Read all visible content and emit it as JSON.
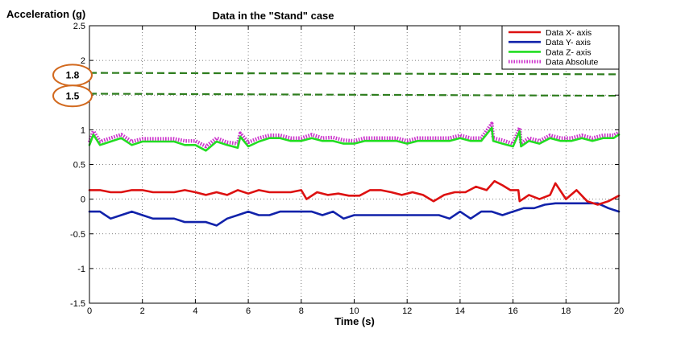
{
  "chart_data": {
    "type": "line",
    "title": "Data in the \"Stand\" case",
    "xlabel": "Time (s)",
    "ylabel": "Acceleration (g)",
    "xlim": [
      0,
      20
    ],
    "ylim": [
      -1.5,
      2.5
    ],
    "xticks": [
      "0",
      "2",
      "4",
      "6",
      "8",
      "10",
      "12",
      "14",
      "16",
      "18",
      "20"
    ],
    "yticks": [
      "-1.5",
      "-1",
      "-0.5",
      "0",
      "0.5",
      "1",
      "1.5",
      "2",
      "2.5"
    ],
    "grid": true,
    "legend_position": "top-right",
    "series": [
      {
        "name": "Data X- axis",
        "color": "#dd1111",
        "style": "solid",
        "x": [
          0,
          0.4,
          0.8,
          1.2,
          1.6,
          2.0,
          2.4,
          2.8,
          3.2,
          3.6,
          4.0,
          4.4,
          4.8,
          5.2,
          5.6,
          6.0,
          6.4,
          6.8,
          7.2,
          7.6,
          8.0,
          8.2,
          8.6,
          9.0,
          9.4,
          9.8,
          10.2,
          10.6,
          11.0,
          11.4,
          11.8,
          12.2,
          12.6,
          13.0,
          13.4,
          13.8,
          14.2,
          14.6,
          15.0,
          15.3,
          15.6,
          15.9,
          16.2,
          16.25,
          16.6,
          17.0,
          17.4,
          17.6,
          18.0,
          18.4,
          18.8,
          19.2,
          19.6,
          20.0
        ],
        "y": [
          0.13,
          0.13,
          0.1,
          0.1,
          0.13,
          0.13,
          0.1,
          0.1,
          0.1,
          0.13,
          0.1,
          0.06,
          0.1,
          0.06,
          0.13,
          0.08,
          0.13,
          0.1,
          0.1,
          0.1,
          0.13,
          0.0,
          0.1,
          0.06,
          0.08,
          0.05,
          0.05,
          0.13,
          0.13,
          0.1,
          0.06,
          0.1,
          0.06,
          -0.03,
          0.06,
          0.1,
          0.1,
          0.18,
          0.13,
          0.26,
          0.2,
          0.13,
          0.13,
          -0.03,
          0.06,
          0.0,
          0.06,
          0.23,
          0.0,
          0.13,
          -0.03,
          -0.08,
          -0.03,
          0.05
        ]
      },
      {
        "name": "Data Y- axis",
        "color": "#1122aa",
        "style": "solid",
        "x": [
          0,
          0.4,
          0.8,
          1.2,
          1.6,
          2.0,
          2.4,
          2.8,
          3.2,
          3.6,
          4.0,
          4.4,
          4.8,
          5.2,
          5.6,
          6.0,
          6.4,
          6.8,
          7.2,
          7.6,
          8.0,
          8.4,
          8.8,
          9.2,
          9.6,
          10.0,
          10.4,
          10.8,
          11.2,
          11.6,
          12.0,
          12.4,
          12.8,
          13.2,
          13.6,
          14.0,
          14.4,
          14.8,
          15.2,
          15.6,
          16.0,
          16.4,
          16.8,
          17.2,
          17.6,
          18.0,
          18.4,
          18.8,
          19.2,
          19.6,
          20.0
        ],
        "y": [
          -0.18,
          -0.18,
          -0.28,
          -0.23,
          -0.18,
          -0.23,
          -0.28,
          -0.28,
          -0.28,
          -0.33,
          -0.33,
          -0.33,
          -0.38,
          -0.28,
          -0.23,
          -0.18,
          -0.23,
          -0.23,
          -0.18,
          -0.18,
          -0.18,
          -0.18,
          -0.23,
          -0.18,
          -0.28,
          -0.23,
          -0.23,
          -0.23,
          -0.23,
          -0.23,
          -0.23,
          -0.23,
          -0.23,
          -0.23,
          -0.28,
          -0.18,
          -0.28,
          -0.18,
          -0.18,
          -0.23,
          -0.18,
          -0.13,
          -0.13,
          -0.08,
          -0.06,
          -0.06,
          -0.06,
          -0.06,
          -0.06,
          -0.13,
          -0.18
        ]
      },
      {
        "name": "Data Z- axis",
        "color": "#22dd22",
        "style": "solid",
        "x": [
          0,
          0.15,
          0.4,
          0.8,
          1.2,
          1.6,
          2.0,
          2.4,
          2.8,
          3.2,
          3.6,
          4.0,
          4.4,
          4.8,
          5.2,
          5.6,
          5.7,
          6.0,
          6.4,
          6.8,
          7.2,
          7.6,
          8.0,
          8.4,
          8.8,
          9.2,
          9.6,
          10.0,
          10.4,
          10.8,
          11.2,
          11.6,
          12.0,
          12.4,
          12.8,
          13.2,
          13.6,
          14.0,
          14.4,
          14.8,
          15.2,
          15.25,
          15.6,
          16.0,
          16.25,
          16.3,
          16.6,
          17.0,
          17.4,
          17.8,
          18.2,
          18.6,
          19.0,
          19.4,
          19.8,
          20.0
        ],
        "y": [
          0.78,
          0.93,
          0.78,
          0.83,
          0.88,
          0.78,
          0.83,
          0.83,
          0.83,
          0.83,
          0.78,
          0.78,
          0.7,
          0.83,
          0.78,
          0.74,
          0.9,
          0.76,
          0.83,
          0.88,
          0.88,
          0.84,
          0.84,
          0.88,
          0.84,
          0.84,
          0.8,
          0.8,
          0.84,
          0.84,
          0.84,
          0.84,
          0.8,
          0.84,
          0.84,
          0.84,
          0.84,
          0.88,
          0.84,
          0.84,
          1.03,
          0.84,
          0.8,
          0.76,
          0.98,
          0.76,
          0.84,
          0.8,
          0.88,
          0.84,
          0.84,
          0.88,
          0.84,
          0.88,
          0.88,
          0.93
        ]
      },
      {
        "name": "Data Absolute",
        "color": "#cc33cc",
        "style": "dotted",
        "x": [
          0,
          0.15,
          0.4,
          0.8,
          1.2,
          1.6,
          2.0,
          2.4,
          2.8,
          3.2,
          3.6,
          4.0,
          4.4,
          4.8,
          5.2,
          5.6,
          5.7,
          6.0,
          6.4,
          6.8,
          7.2,
          7.6,
          8.0,
          8.4,
          8.8,
          9.2,
          9.6,
          10.0,
          10.4,
          10.8,
          11.2,
          11.6,
          12.0,
          12.4,
          12.8,
          13.2,
          13.6,
          14.0,
          14.4,
          14.8,
          15.2,
          15.25,
          15.6,
          16.0,
          16.25,
          16.3,
          16.6,
          17.0,
          17.4,
          17.8,
          18.2,
          18.6,
          19.0,
          19.4,
          19.8,
          20.0
        ],
        "y": [
          0.82,
          0.98,
          0.83,
          0.88,
          0.93,
          0.83,
          0.87,
          0.87,
          0.87,
          0.87,
          0.84,
          0.84,
          0.76,
          0.88,
          0.82,
          0.8,
          0.95,
          0.82,
          0.88,
          0.92,
          0.92,
          0.88,
          0.88,
          0.93,
          0.88,
          0.89,
          0.85,
          0.84,
          0.88,
          0.88,
          0.88,
          0.88,
          0.84,
          0.88,
          0.88,
          0.88,
          0.88,
          0.92,
          0.88,
          0.88,
          1.09,
          0.88,
          0.85,
          0.8,
          1.03,
          0.8,
          0.88,
          0.84,
          0.92,
          0.88,
          0.88,
          0.92,
          0.88,
          0.92,
          0.92,
          0.96
        ]
      },
      {
        "name": "Threshold 1.8",
        "color": "#2e7d1e",
        "style": "dashed",
        "show_in_legend": false,
        "x": [
          0,
          20
        ],
        "y": [
          1.82,
          1.8
        ]
      },
      {
        "name": "Threshold 1.5",
        "color": "#2e7d1e",
        "style": "dashed",
        "show_in_legend": false,
        "x": [
          0,
          20
        ],
        "y": [
          1.52,
          1.49
        ]
      }
    ],
    "annotations": [
      {
        "label": "1.8",
        "y": 1.8,
        "color": "#d2691e"
      },
      {
        "label": "1.5",
        "y": 1.5,
        "color": "#d2691e"
      }
    ]
  }
}
